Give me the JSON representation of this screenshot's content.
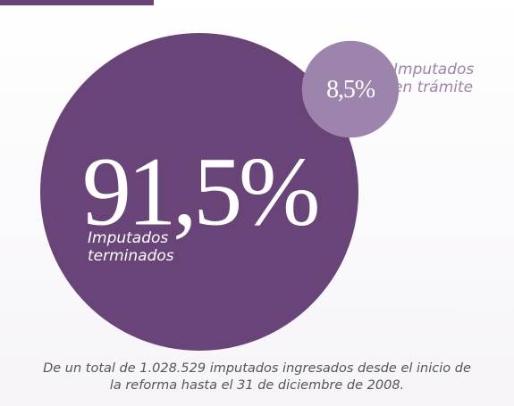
{
  "chart_data": {
    "type": "proportional-circles",
    "categories": [
      "Imputados terminados",
      "Imputados en trámite"
    ],
    "values": [
      91.5,
      8.5
    ],
    "value_labels": [
      "91,5%",
      "8,5%"
    ],
    "colors": [
      "#684478",
      "#9d84ad"
    ],
    "footnote": "De un total de 1.028.529 imputados ingresados desde el inicio de la reforma hasta el 31 de diciembre de 2008."
  }
}
